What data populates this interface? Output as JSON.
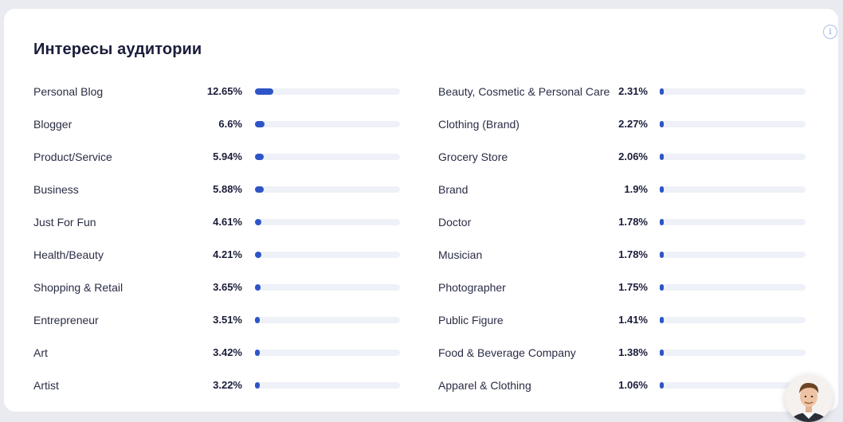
{
  "title": "Интересы аудитории",
  "info_icon": "i",
  "colors": {
    "accent": "#2e55c7",
    "track": "#eef1f7"
  },
  "left": [
    {
      "label": "Personal Blog",
      "percent": "12.65%",
      "value": 12.65
    },
    {
      "label": "Blogger",
      "percent": "6.6%",
      "value": 6.6
    },
    {
      "label": "Product/Service",
      "percent": "5.94%",
      "value": 5.94
    },
    {
      "label": "Business",
      "percent": "5.88%",
      "value": 5.88
    },
    {
      "label": "Just For Fun",
      "percent": "4.61%",
      "value": 4.61
    },
    {
      "label": "Health/Beauty",
      "percent": "4.21%",
      "value": 4.21
    },
    {
      "label": "Shopping & Retail",
      "percent": "3.65%",
      "value": 3.65
    },
    {
      "label": "Entrepreneur",
      "percent": "3.51%",
      "value": 3.51
    },
    {
      "label": "Art",
      "percent": "3.42%",
      "value": 3.42
    },
    {
      "label": "Artist",
      "percent": "3.22%",
      "value": 3.22
    }
  ],
  "right": [
    {
      "label": "Beauty, Cosmetic & Personal Care",
      "percent": "2.31%",
      "value": 2.31
    },
    {
      "label": "Clothing (Brand)",
      "percent": "2.27%",
      "value": 2.27
    },
    {
      "label": "Grocery Store",
      "percent": "2.06%",
      "value": 2.06
    },
    {
      "label": "Brand",
      "percent": "1.9%",
      "value": 1.9
    },
    {
      "label": "Doctor",
      "percent": "1.78%",
      "value": 1.78
    },
    {
      "label": "Musician",
      "percent": "1.78%",
      "value": 1.78
    },
    {
      "label": "Photographer",
      "percent": "1.75%",
      "value": 1.75
    },
    {
      "label": "Public Figure",
      "percent": "1.41%",
      "value": 1.41
    },
    {
      "label": "Food & Beverage Company",
      "percent": "1.38%",
      "value": 1.38
    },
    {
      "label": "Apparel & Clothing",
      "percent": "1.06%",
      "value": 1.06
    }
  ]
}
